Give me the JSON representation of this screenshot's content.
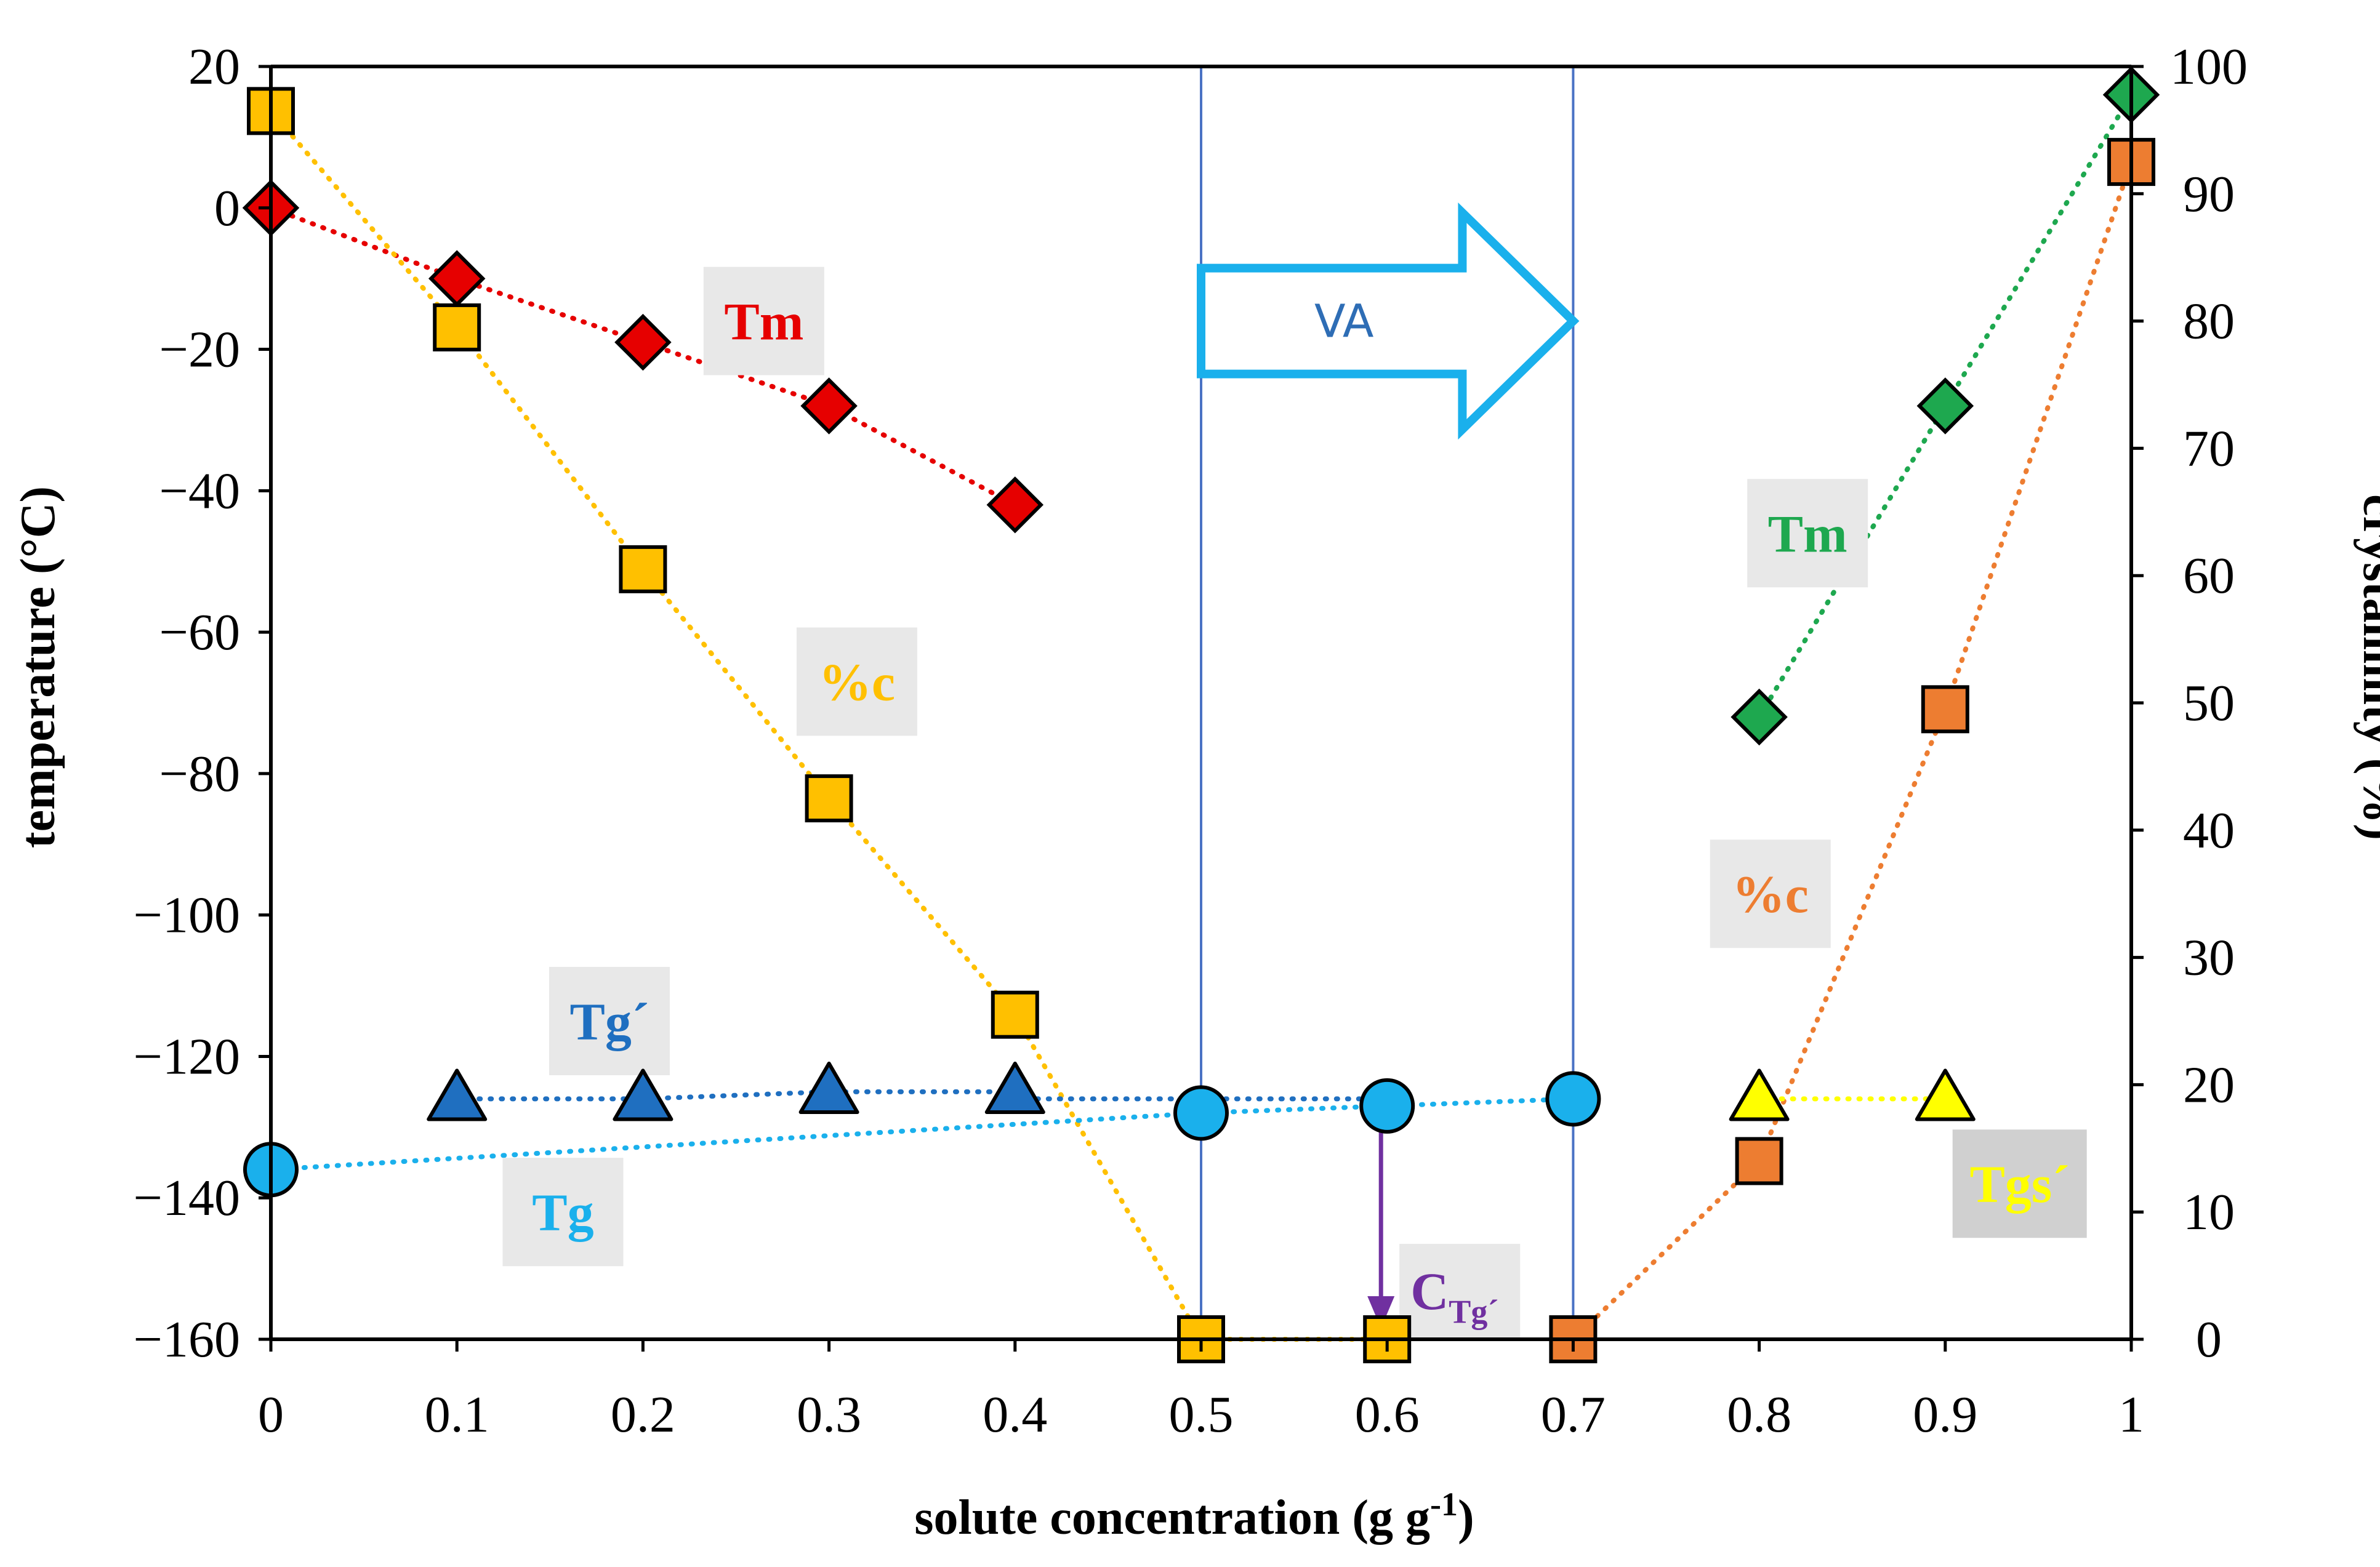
{
  "chart_data": {
    "type": "scatter",
    "title": "",
    "xlabel": "solute concentration (g g",
    "xlabel_sup": "-1",
    "xlabel_tail": ")",
    "ylabel": "temperature (°C)",
    "y2label": "crystallinity (%)",
    "xlim": [
      0,
      1
    ],
    "ylim": [
      -160,
      20
    ],
    "y2lim": [
      0,
      100
    ],
    "x_ticks": [
      "0",
      "0.1",
      "0.2",
      "0.3",
      "0.4",
      "0.5",
      "0.6",
      "0.7",
      "0.8",
      "0.9",
      "1"
    ],
    "y_ticks": [
      "20",
      "0",
      "−20",
      "−40",
      "−60",
      "−80",
      "−100",
      "−120",
      "−140",
      "−160"
    ],
    "y_tick_values": [
      20,
      0,
      -20,
      -40,
      -60,
      -80,
      -100,
      -120,
      -140,
      -160
    ],
    "y2_ticks": [
      "100",
      "90",
      "80",
      "70",
      "60",
      "50",
      "40",
      "30",
      "20",
      "10",
      "0"
    ],
    "y2_tick_values": [
      100,
      90,
      80,
      70,
      60,
      50,
      40,
      30,
      20,
      10,
      0
    ],
    "vlines": [
      0.5,
      0.7
    ],
    "series": [
      {
        "id": "tm-low",
        "name": "Tm",
        "axis": "left",
        "marker": "diamond",
        "color": "#e60000",
        "line_color": "#e60000",
        "x": [
          0,
          0.1,
          0.2,
          0.3,
          0.4
        ],
        "y": [
          0,
          -10,
          -19,
          -28,
          -42
        ]
      },
      {
        "id": "tm-high",
        "name": "Tm",
        "axis": "left",
        "marker": "diamond",
        "color": "#1ea84f",
        "line_color": "#1ea84f",
        "x": [
          0.8,
          0.9,
          1.0
        ],
        "y": [
          -72,
          -28,
          16
        ]
      },
      {
        "id": "pc-low",
        "name": "%c",
        "axis": "right",
        "marker": "square",
        "color": "#ffc000",
        "line_color": "#ffc000",
        "x": [
          0,
          0.1,
          0.2,
          0.3,
          0.4,
          0.5,
          0.6
        ],
        "y": [
          96.5,
          79.5,
          60.5,
          42.5,
          25.5,
          0,
          0
        ]
      },
      {
        "id": "pc-high",
        "name": "%c",
        "axis": "right",
        "marker": "square",
        "color": "#ed7d31",
        "line_color": "#ed7d31",
        "x": [
          0.7,
          0.8,
          0.9,
          1.0
        ],
        "y": [
          0,
          14,
          49.5,
          92.5
        ]
      },
      {
        "id": "tg-prime",
        "name": "Tg´",
        "axis": "left",
        "marker": "triangle",
        "color": "#1f6fc0",
        "line_color": "#1f6fc0",
        "x": [
          0.1,
          0.2,
          0.3,
          0.4
        ],
        "y": [
          -126,
          -126,
          -125,
          -125
        ]
      },
      {
        "id": "tg",
        "name": "Tg",
        "axis": "left",
        "marker": "circle",
        "color": "#1ab0ec",
        "line_color": "#1ab0ec",
        "x": [
          0,
          0.5,
          0.6,
          0.7
        ],
        "y": [
          -136,
          -128,
          -127,
          -126
        ]
      },
      {
        "id": "tgs-prime",
        "name": "Tgs´",
        "axis": "left",
        "marker": "triangle",
        "color": "#ffff00",
        "line_color": "#ffff00",
        "x": [
          0.8,
          0.9
        ],
        "y": [
          -126,
          -126
        ]
      }
    ],
    "extra_lines": [
      {
        "id": "tg-prime-ext",
        "color": "#1f6fc0",
        "x": [
          0.4,
          0.6
        ],
        "y": [
          -126,
          -126
        ]
      }
    ],
    "annotations": {
      "va": {
        "text": "VA",
        "x_from": 0.5,
        "x_to": 0.7,
        "y": -16,
        "color": "#1ab0ec",
        "text_color": "#2e6db5"
      },
      "ctg": {
        "text": "C",
        "sub": "Tg´",
        "x": 0.6,
        "y_from": -127,
        "y_to": -160,
        "color": "#7030a0"
      }
    },
    "labels": [
      {
        "id": "tm-low",
        "text": "Tm",
        "color": "#e60000",
        "x": 0.265,
        "y": -16
      },
      {
        "id": "pc-low",
        "text": "%c",
        "color": "#ffc000",
        "x": 0.315,
        "y": -67
      },
      {
        "id": "tg-prime",
        "text": "Tg´",
        "color": "#1f6fc0",
        "x": 0.182,
        "y": -115
      },
      {
        "id": "tg",
        "text": "Tg",
        "color": "#1ab0ec",
        "x": 0.157,
        "y": -142
      },
      {
        "id": "tm-high",
        "text": "Tm",
        "color": "#1ea84f",
        "x": 0.826,
        "y": -46
      },
      {
        "id": "pc-high",
        "text": "%c",
        "color": "#ed7d31",
        "x": 0.806,
        "y": -97
      },
      {
        "id": "tgs-prime",
        "text": "Tgs´",
        "color": "#ffff00",
        "x": 0.94,
        "y": -138,
        "box": "#d0d0d0"
      }
    ],
    "label_box_color": "#e8e8e8"
  }
}
